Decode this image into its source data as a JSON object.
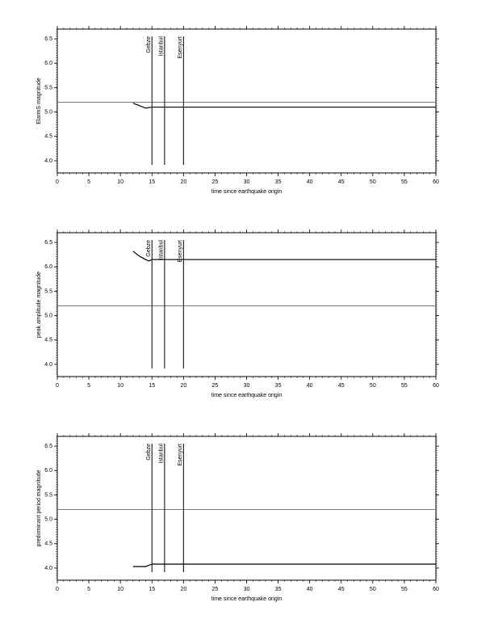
{
  "chart_data": [
    {
      "type": "line",
      "y_label": "ElarmS magnitude",
      "x_label": "time since earthquake origin",
      "x": [
        12,
        13,
        14,
        15,
        60
      ],
      "values": [
        5.18,
        5.13,
        5.08,
        5.1,
        5.1
      ],
      "color": "#000000",
      "reference_line": 5.2,
      "reference_color": "#777777",
      "markers": [
        {
          "label": "Gebze",
          "x": 15
        },
        {
          "label": "Istanbul",
          "x": 17
        },
        {
          "label": "Esenyurt",
          "x": 20
        }
      ],
      "xlim": [
        0,
        60
      ],
      "xticks": [
        0,
        5,
        10,
        15,
        20,
        25,
        30,
        35,
        40,
        45,
        50,
        55,
        60
      ],
      "ylim": [
        3.75,
        6.7
      ],
      "yticks": [
        {
          "value": 4,
          "label": "4.0"
        },
        4.5,
        {
          "value": 5,
          "label": "5.0"
        },
        5.5,
        {
          "value": 6,
          "label": "6.0"
        },
        6.5
      ]
    },
    {
      "type": "line",
      "y_label": "peak amplitude magnitude",
      "x_label": "time since earthquake origin",
      "x": [
        12,
        13,
        14,
        14.5,
        15,
        60
      ],
      "values": [
        6.32,
        6.22,
        6.15,
        6.12,
        6.15,
        6.15
      ],
      "color": "#000000",
      "reference_line": 5.2,
      "reference_color": "#777777",
      "markers": [
        {
          "label": "Gebze",
          "x": 15
        },
        {
          "label": "Istanbul",
          "x": 17
        },
        {
          "label": "Esenyurt",
          "x": 20
        }
      ],
      "xlim": [
        0,
        60
      ],
      "xticks": [
        0,
        5,
        10,
        15,
        20,
        25,
        30,
        35,
        40,
        45,
        50,
        55,
        60
      ],
      "ylim": [
        3.75,
        6.7
      ],
      "yticks": [
        {
          "value": 4,
          "label": "4.0"
        },
        4.5,
        {
          "value": 5,
          "label": "5.0"
        },
        5.5,
        {
          "value": 6,
          "label": "6.0"
        },
        6.5
      ]
    },
    {
      "type": "line",
      "y_label": "predominant period magnitude",
      "x_label": "time since earthquake origin",
      "x": [
        12,
        14,
        15,
        60
      ],
      "values": [
        4.03,
        4.03,
        4.08,
        4.08
      ],
      "color": "#000000",
      "reference_line": 5.2,
      "reference_color": "#777777",
      "markers": [
        {
          "label": "Gebze",
          "x": 15
        },
        {
          "label": "Istanbul",
          "x": 17
        },
        {
          "label": "Esenyurt",
          "x": 20
        }
      ],
      "xlim": [
        0,
        60
      ],
      "xticks": [
        0,
        5,
        10,
        15,
        20,
        25,
        30,
        35,
        40,
        45,
        50,
        55,
        60
      ],
      "ylim": [
        3.75,
        6.7
      ],
      "yticks": [
        {
          "value": 4,
          "label": "4.0"
        },
        4.5,
        {
          "value": 5,
          "label": "5.0"
        },
        5.5,
        {
          "value": 6,
          "label": "6.0"
        },
        6.5
      ]
    }
  ]
}
